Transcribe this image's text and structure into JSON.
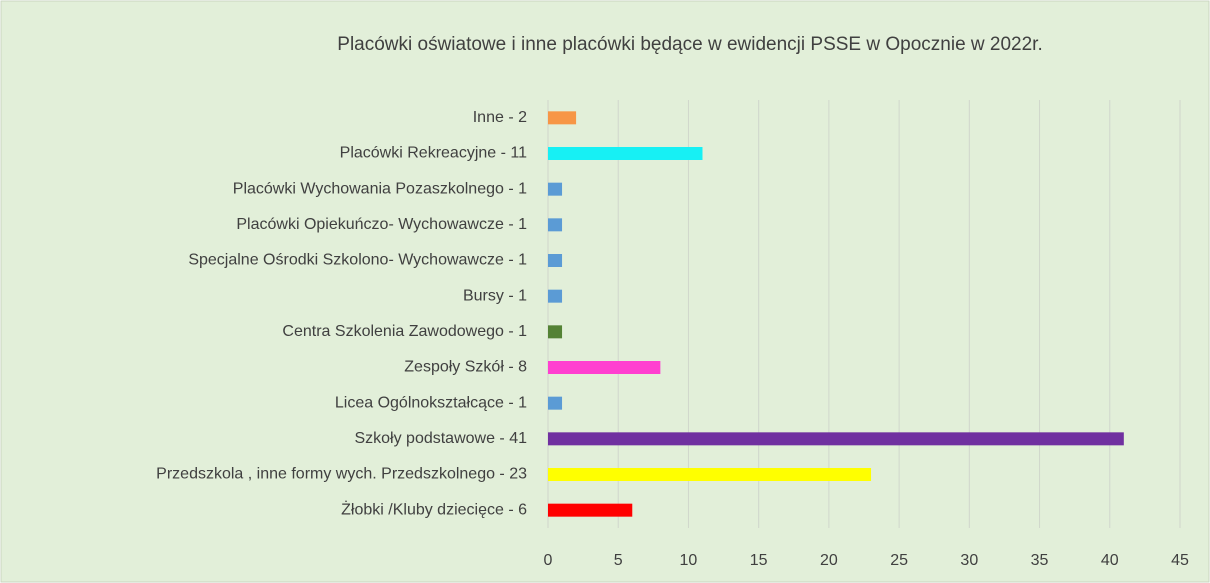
{
  "chart_data": {
    "type": "barh",
    "title": "Placówki oświatowe i inne placówki będące w ewidencji PSSE w Opocznie w 2022r.",
    "categories": [
      "Inne - 2",
      "Placówki Rekreacyjne - 11",
      "Placówki Wychowania Pozaszkolnego - 1",
      "Placówki Opiekuńczo- Wychowawcze - 1",
      "Specjalne Ośrodki Szkolono- Wychowawcze - 1",
      "Bursy - 1",
      "Centra Szkolenia Zawodowego - 1",
      "Zespoły Szkół - 8",
      "Licea Ogólnokształcące - 1",
      "Szkoły podstawowe - 41",
      "Przedszkola , inne formy wych. Przedszkolnego - 23",
      "Żłobki /Kluby dziecięce - 6"
    ],
    "values": [
      2,
      11,
      1,
      1,
      1,
      1,
      1,
      8,
      1,
      41,
      23,
      6
    ],
    "colors": [
      "#f79646",
      "#17f0f4",
      "#5b9bd5",
      "#5b9bd5",
      "#5b9bd5",
      "#5b9bd5",
      "#548235",
      "#ff40d0",
      "#5b9bd5",
      "#7030a0",
      "#ffff00",
      "#ff0000"
    ],
    "xlim": [
      0,
      45
    ],
    "xticks": [
      0,
      5,
      10,
      15,
      20,
      25,
      30,
      35,
      40,
      45
    ],
    "grid": true
  }
}
